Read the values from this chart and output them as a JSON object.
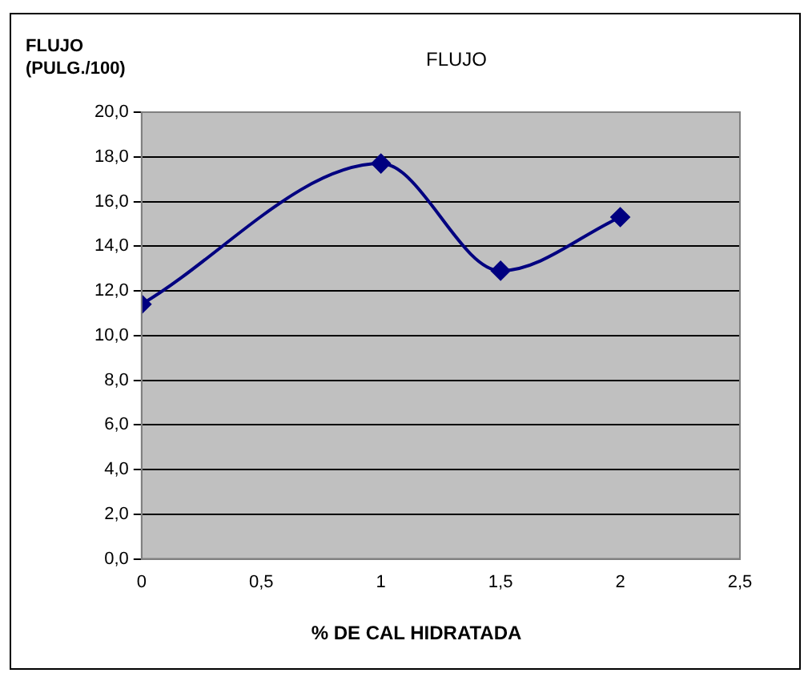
{
  "chart_data": {
    "type": "line",
    "title": "FLUJO",
    "ylabel": "FLUJO\n(PULG./100)",
    "xlabel": "% DE CAL HIDRATADA",
    "x": [
      0,
      1,
      1.5,
      2
    ],
    "series": [
      {
        "color": "#000080",
        "values": [
          11.4,
          17.7,
          12.9,
          15.3
        ]
      }
    ],
    "xlim": [
      0,
      2.5
    ],
    "xticks": [
      0,
      {
        "value": 0.5,
        "label": "0,5"
      },
      1,
      {
        "value": 1.5,
        "label": "1,5"
      },
      2,
      {
        "value": 2.5,
        "label": "2,5"
      }
    ],
    "ylim": [
      0,
      20
    ],
    "yticks": [
      {
        "value": 0,
        "label": "0,0"
      },
      {
        "value": 2,
        "label": "2,0"
      },
      {
        "value": 4,
        "label": "4,0"
      },
      {
        "value": 6,
        "label": "6,0"
      },
      {
        "value": 8,
        "label": "8,0"
      },
      {
        "value": 10,
        "label": "10,0"
      },
      {
        "value": 12,
        "label": "12,0"
      },
      {
        "value": 14,
        "label": "14,0"
      },
      {
        "value": 16,
        "label": "16,0"
      },
      {
        "value": 18,
        "label": "18,0"
      },
      {
        "value": 20,
        "label": "20,0"
      }
    ],
    "grid": "y",
    "legend": false,
    "marker": "diamond",
    "line_style": "solid"
  }
}
